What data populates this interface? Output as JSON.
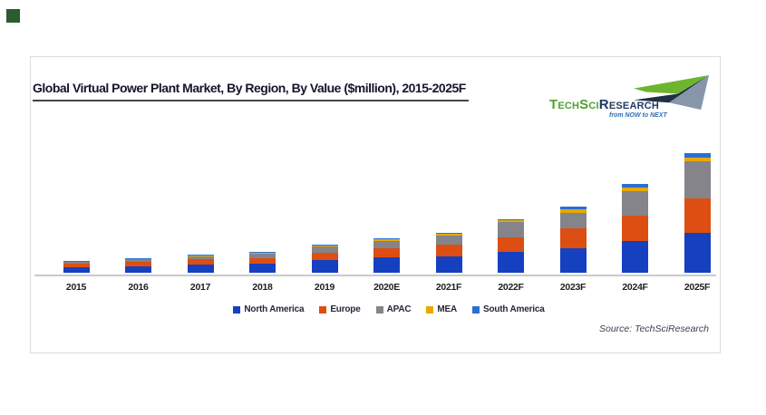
{
  "decor": {
    "corner_square_color": "#2b5c2e"
  },
  "chart": {
    "title": "Global Virtual Power Plant Market, By Region, By Value ($million), 2015-2025F",
    "source_label": "Source: TechSciResearch"
  },
  "logo": {
    "brand_primary": "TechSci",
    "brand_secondary": "Research",
    "tagline": "from NOW to NEXT",
    "brand_primary_color": "#4fa32e",
    "brand_secondary_color": "#1e3a63",
    "arrow_colors": {
      "green": "#6cb52d",
      "navy": "#1f3045",
      "steel": "#8796a9"
    }
  },
  "chart_data": {
    "type": "bar",
    "stacked": true,
    "title": "Global Virtual Power Plant Market, By Region, By Value ($million), 2015-2025F",
    "xlabel": "",
    "ylabel": "",
    "units": "relative estimated values (no y-axis shown in figure)",
    "ylim": [
      0,
      140
    ],
    "grid": false,
    "legend_position": "bottom",
    "categories": [
      "2015",
      "2016",
      "2017",
      "2018",
      "2019",
      "2020E",
      "2021F",
      "2022F",
      "2023F",
      "2024F",
      "2025F"
    ],
    "series": [
      {
        "name": "North America",
        "color": "#1540c0",
        "values": [
          6,
          7,
          9,
          10,
          14,
          17,
          18,
          23,
          27,
          35,
          44
        ]
      },
      {
        "name": "Europe",
        "color": "#dd4e12",
        "values": [
          4,
          5,
          6,
          6,
          8,
          10,
          13,
          16,
          22,
          28,
          38
        ]
      },
      {
        "name": "APAC",
        "color": "#84848a",
        "values": [
          2,
          3,
          3,
          5,
          7,
          8,
          10,
          17,
          17,
          27,
          41
        ]
      },
      {
        "name": "MEA",
        "color": "#e7a800",
        "values": [
          0.5,
          0.5,
          1,
          1,
          1.5,
          2,
          2,
          2.5,
          4,
          4,
          4
        ]
      },
      {
        "name": "South America",
        "color": "#2b70d3",
        "values": [
          0.5,
          0.5,
          1,
          1,
          0.5,
          1,
          1,
          1,
          3,
          4,
          5
        ]
      }
    ]
  }
}
